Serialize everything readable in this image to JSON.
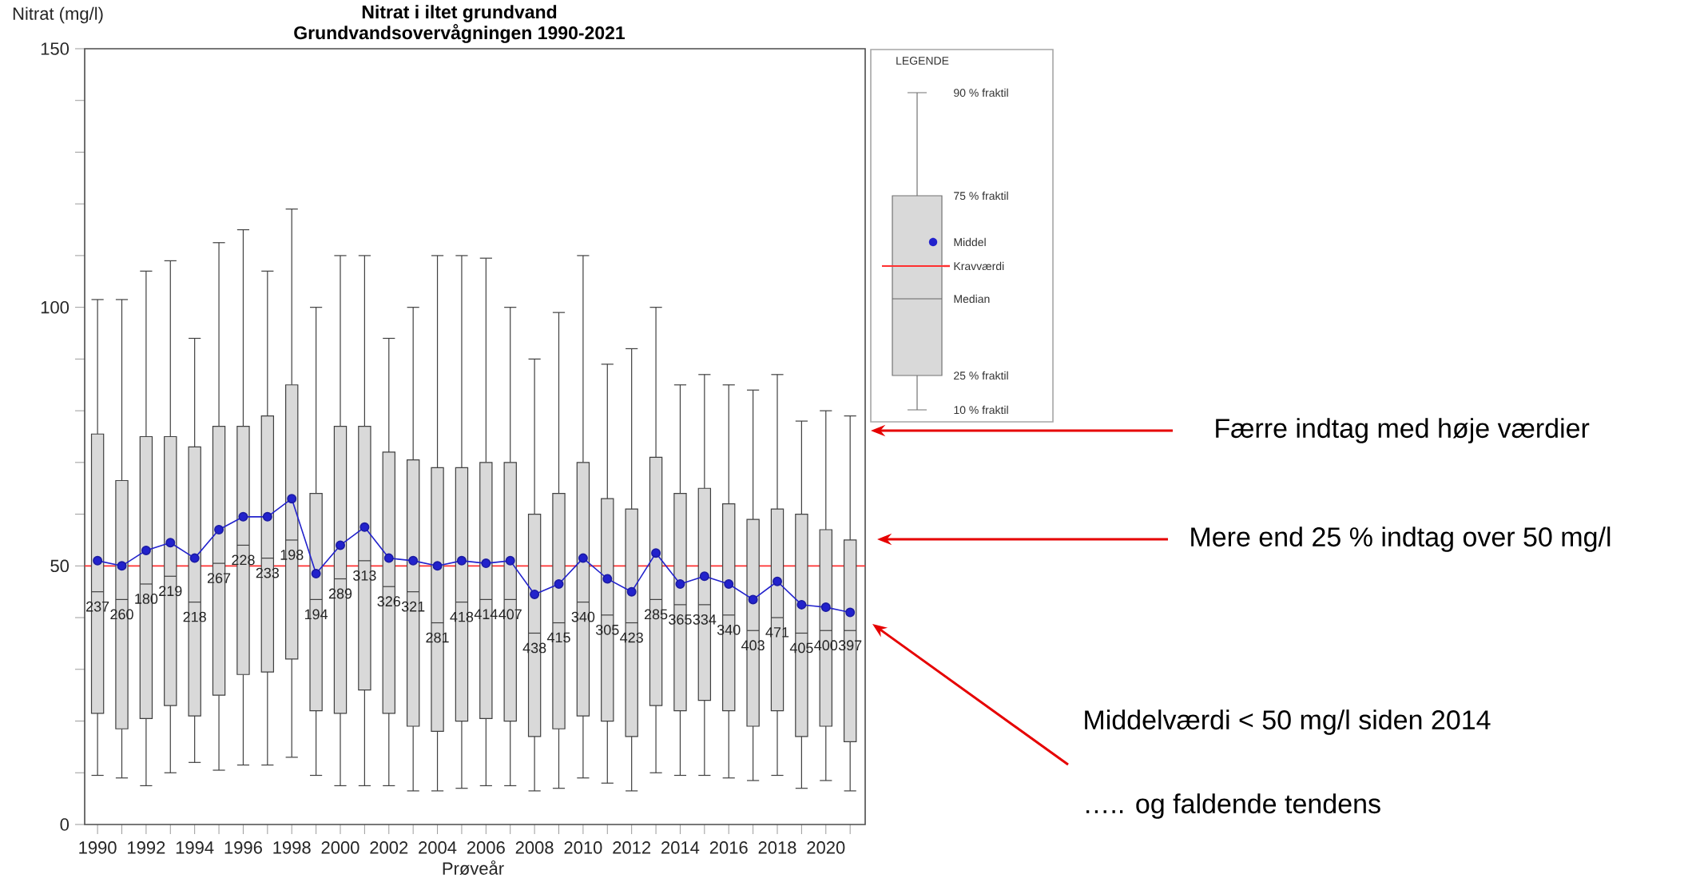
{
  "chart_data": {
    "type": "box",
    "title": "Nitrat i iltet grundvand",
    "subtitle": "Grundvandsovervågningen 1990-2021",
    "xlabel": "Prøveår",
    "ylabel": "Nitrat (mg/l)",
    "legend_title": "LEGENDE",
    "legend": "top right",
    "categories": [
      "1990",
      null,
      "1992",
      null,
      "1994",
      null,
      "1996",
      null,
      "1998",
      null,
      "2000",
      null,
      "2002",
      null,
      "2004",
      null,
      "2006",
      null,
      "2008",
      null,
      "2010",
      null,
      "2012",
      null,
      "2014",
      null,
      "2016",
      null,
      "2018",
      null,
      "2020",
      null
    ],
    "ylim": [
      0,
      150
    ],
    "yticks": [
      0,
      50,
      100,
      150
    ],
    "series": [
      {
        "color": "#d9d9d9",
        "boxes": [
          {
            "low": 9.5,
            "q1": 21.5,
            "median": 45,
            "q3": 75.5,
            "high": 101.5
          },
          {
            "low": 9,
            "q1": 18.5,
            "median": 43.5,
            "q3": 66.5,
            "high": 101.5
          },
          {
            "low": 7.5,
            "q1": 20.5,
            "median": 46.5,
            "q3": 75,
            "high": 107
          },
          {
            "low": 10,
            "q1": 23,
            "median": 48,
            "q3": 75,
            "high": 109
          },
          {
            "low": 12,
            "q1": 21,
            "median": 43,
            "q3": 73,
            "high": 94
          },
          {
            "low": 10.5,
            "q1": 25,
            "median": 50.5,
            "q3": 77,
            "high": 112.5
          },
          {
            "low": 11.5,
            "q1": 29,
            "median": 54,
            "q3": 77,
            "high": 115
          },
          {
            "low": 11.5,
            "q1": 29.5,
            "median": 51.5,
            "q3": 79,
            "high": 107
          },
          {
            "low": 13,
            "q1": 32,
            "median": 55,
            "q3": 85,
            "high": 119
          },
          {
            "low": 9.5,
            "q1": 22,
            "median": 43.5,
            "q3": 64,
            "high": 100
          },
          {
            "low": 7.5,
            "q1": 21.5,
            "median": 47.5,
            "q3": 77,
            "high": 110
          },
          {
            "low": 7.5,
            "q1": 26,
            "median": 51,
            "q3": 77,
            "high": 110
          },
          {
            "low": 7.5,
            "q1": 21.5,
            "median": 46,
            "q3": 72,
            "high": 94
          },
          {
            "low": 6.5,
            "q1": 19,
            "median": 45,
            "q3": 70.5,
            "high": 100
          },
          {
            "low": 6.5,
            "q1": 18,
            "median": 39,
            "q3": 69,
            "high": 110
          },
          {
            "low": 7,
            "q1": 20,
            "median": 43,
            "q3": 69,
            "high": 110
          },
          {
            "low": 7.5,
            "q1": 20.5,
            "median": 43.5,
            "q3": 70,
            "high": 109.5
          },
          {
            "low": 7.5,
            "q1": 20,
            "median": 43.5,
            "q3": 70,
            "high": 100
          },
          {
            "low": 6.5,
            "q1": 17,
            "median": 37,
            "q3": 60,
            "high": 90
          },
          {
            "low": 7,
            "q1": 18.5,
            "median": 39,
            "q3": 64,
            "high": 99
          },
          {
            "low": 9,
            "q1": 21,
            "median": 43,
            "q3": 70,
            "high": 110
          },
          {
            "low": 8,
            "q1": 20,
            "median": 40.5,
            "q3": 63,
            "high": 89
          },
          {
            "low": 6.5,
            "q1": 17,
            "median": 39,
            "q3": 61,
            "high": 92
          },
          {
            "low": 10,
            "q1": 23,
            "median": 43.5,
            "q3": 71,
            "high": 100
          },
          {
            "low": 9.5,
            "q1": 22,
            "median": 42.5,
            "q3": 64,
            "high": 85
          },
          {
            "low": 9.5,
            "q1": 24,
            "median": 42.5,
            "q3": 65,
            "high": 87
          },
          {
            "low": 9,
            "q1": 22,
            "median": 40.5,
            "q3": 62,
            "high": 85
          },
          {
            "low": 8.5,
            "q1": 19,
            "median": 37.5,
            "q3": 59,
            "high": 84
          },
          {
            "low": 9.5,
            "q1": 22,
            "median": 40,
            "q3": 61,
            "high": 87
          },
          {
            "low": 7,
            "q1": 17,
            "median": 37,
            "q3": 60,
            "high": 78
          },
          {
            "low": 8.5,
            "q1": 19,
            "median": 37.5,
            "q3": 57,
            "high": 80
          },
          {
            "low": 6.5,
            "q1": 16,
            "median": 37.5,
            "q3": 55,
            "high": 79
          }
        ],
        "value_labels": [
          "237",
          "260",
          "180",
          "219",
          "218",
          "267",
          "228",
          "233",
          "198",
          "194",
          "289",
          "313",
          "326",
          "321",
          "281",
          "418",
          "414",
          "407",
          "438",
          "415",
          "340",
          "305",
          "423",
          "285",
          "365",
          "334",
          "340",
          "403",
          "471",
          "405",
          "400",
          "397"
        ]
      },
      {
        "type": "line",
        "name": "Middel",
        "color": "#2222cc",
        "marker": "circle",
        "values": [
          51,
          50,
          53,
          54.5,
          51.5,
          57,
          59.5,
          59.5,
          63,
          48.5,
          54,
          57.5,
          51.5,
          51,
          50,
          51,
          50.5,
          51,
          44.5,
          46.5,
          51.5,
          47.5,
          45,
          52.5,
          46.5,
          48,
          46.5,
          43.5,
          47,
          42.5,
          42,
          41
        ]
      }
    ],
    "ref_lines": [
      {
        "axis": "y",
        "value": 50,
        "label": "Kravværdi",
        "color": "#ff3030"
      }
    ],
    "annotations": [
      "90 % fraktil",
      "75 % fraktil",
      "Median",
      "25 % fraktil",
      "10 % fraktil",
      "Færre indtag med høje værdier",
      "Mere end 25 % indtag over 50 mg/l",
      "Middelværdi < 50 mg/l siden 2014",
      "….. og faldende tendens"
    ]
  }
}
